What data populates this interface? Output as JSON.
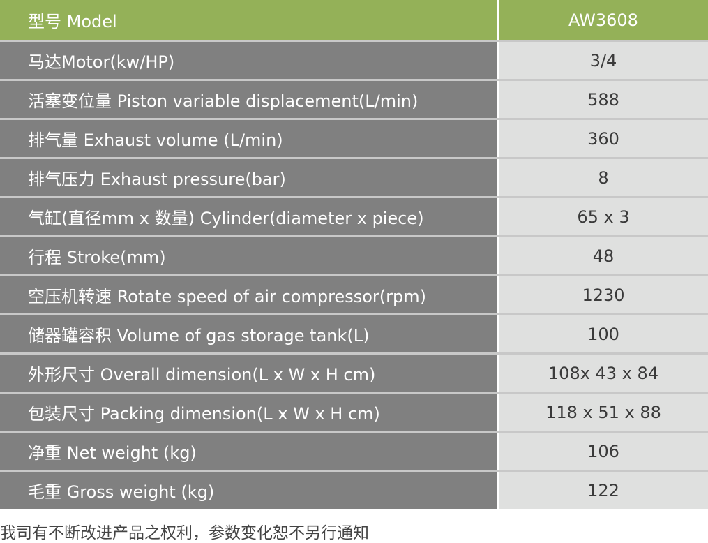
{
  "colors": {
    "header": "#94b158",
    "label_bg": "#808080",
    "value_bg": "#dfe0df"
  },
  "header": {
    "label": "型号 Model",
    "value": "AW3608"
  },
  "rows": [
    {
      "label": "马达Motor(kw/HP)",
      "value": "3/4"
    },
    {
      "label": "活塞变位量 Piston variable displacement(L/min)",
      "value": "588"
    },
    {
      "label": "排气量 Exhaust volume (L/min)",
      "value": "360"
    },
    {
      "label": "排气压力 Exhaust pressure(bar)",
      "value": "8"
    },
    {
      "label": "气缸(直径mm x 数量) Cylinder(diameter x piece)",
      "value": "65 x 3"
    },
    {
      "label": "行程 Stroke(mm)",
      "value": "48"
    },
    {
      "label": "空压机转速 Rotate speed of air compressor(rpm)",
      "value": "1230"
    },
    {
      "label": "储器罐容积 Volume of gas storage tank(L)",
      "value": "100"
    },
    {
      "label": "外形尺寸 Overall dimension(L x W x H cm)",
      "value": "108x 43 x 84"
    },
    {
      "label": "包装尺寸 Packing dimension(L x W x H cm)",
      "value": "118 x 51 x 88"
    },
    {
      "label": "净重 Net weight (kg)",
      "value": "106"
    },
    {
      "label": "毛重 Gross weight (kg)",
      "value": "122"
    }
  ],
  "footer": "我司有不断改进产品之权利，参数变化恕不另行通知"
}
